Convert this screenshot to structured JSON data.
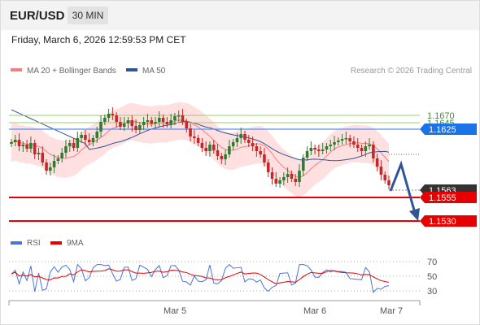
{
  "header": {
    "symbol": "EUR/USD",
    "timeframe": "30 MIN"
  },
  "datetime": "Friday, March 6, 2026 12:59:53 PM CET",
  "legend": {
    "items": [
      {
        "label": "MA 20 + Bollinger Bands",
        "color": "#f08080"
      },
      {
        "label": "MA 50",
        "color": "#2f5597"
      }
    ],
    "copyright": "Research © 2026 Trading Central"
  },
  "levels": [
    {
      "value": 1.167,
      "label": "1.1670",
      "kind": "resistance-line",
      "color": "#9ccc65"
    },
    {
      "value": 1.1645,
      "label": "1.1645",
      "kind": "resistance-line",
      "color": "#9ccc65"
    },
    {
      "value": 1.1625,
      "label": "1.1625",
      "kind": "pivot",
      "color": "#1a73e8"
    },
    {
      "value": 1.1563,
      "label": "1.1563",
      "kind": "last-price",
      "color": "#333333"
    },
    {
      "value": 1.1555,
      "label": "1.1555",
      "kind": "target",
      "color": "#e60000"
    },
    {
      "value": 1.153,
      "label": "1.1530",
      "kind": "target",
      "color": "#e60000"
    }
  ],
  "rsi": {
    "legend": [
      {
        "label": "RSI",
        "color": "#4a74d6"
      },
      {
        "label": "9MA",
        "color": "#e60000"
      }
    ],
    "levels": [
      {
        "value": 70,
        "label": "70"
      },
      {
        "value": 50,
        "label": "50"
      },
      {
        "value": 30,
        "label": "30"
      }
    ]
  },
  "x_axis": {
    "labels": [
      "Mar 5",
      "Mar 6",
      "Mar 7"
    ]
  },
  "colors": {
    "up": "#2e7d32",
    "down": "#c62828",
    "band": "#ffd6d6",
    "ma20": "#f08080",
    "ma50": "#2f5597",
    "arrow": "#2f5597"
  }
}
